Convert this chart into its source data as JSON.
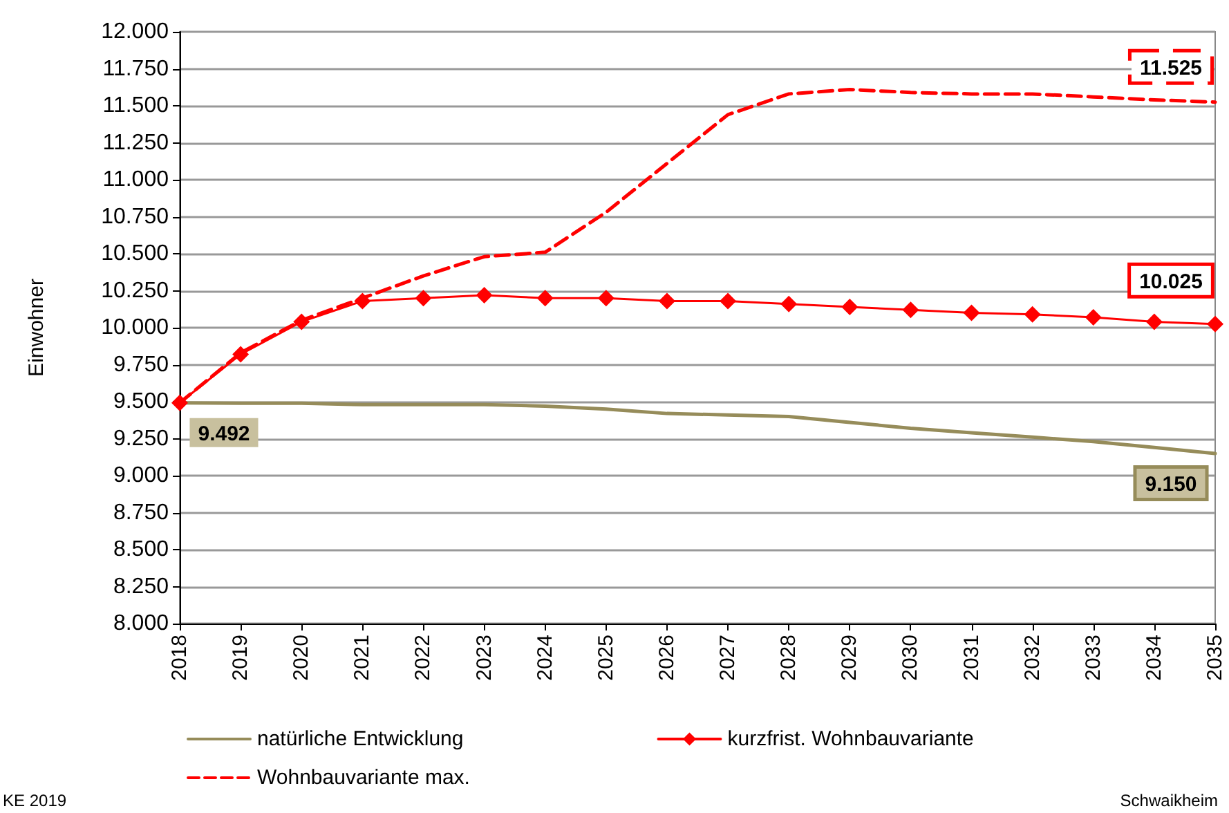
{
  "chart_data": {
    "type": "line",
    "ylabel": "Einwohner",
    "categories": [
      "2018",
      "2019",
      "2020",
      "2021",
      "2022",
      "2023",
      "2024",
      "2025",
      "2026",
      "2027",
      "2028",
      "2029",
      "2030",
      "2031",
      "2032",
      "2033",
      "2034",
      "2035"
    ],
    "ylim": [
      8000,
      12000
    ],
    "yticks": [
      {
        "value": 8000,
        "label": "8.000"
      },
      {
        "value": 8250,
        "label": "8.250"
      },
      {
        "value": 8500,
        "label": "8.500"
      },
      {
        "value": 8750,
        "label": "8.750"
      },
      {
        "value": 9000,
        "label": "9.000"
      },
      {
        "value": 9250,
        "label": "9.250"
      },
      {
        "value": 9500,
        "label": "9.500"
      },
      {
        "value": 9750,
        "label": "9.750"
      },
      {
        "value": 10000,
        "label": "10.000"
      },
      {
        "value": 10250,
        "label": "10.250"
      },
      {
        "value": 10500,
        "label": "10.500"
      },
      {
        "value": 10750,
        "label": "10.750"
      },
      {
        "value": 11000,
        "label": "11.000"
      },
      {
        "value": 11250,
        "label": "11.250"
      },
      {
        "value": 11500,
        "label": "11.500"
      },
      {
        "value": 11750,
        "label": "11.750"
      },
      {
        "value": 12000,
        "label": "12.000"
      }
    ],
    "grid": "y",
    "legend": "bottom",
    "series": [
      {
        "name": "natürliche Entwicklung",
        "color": "#968c5a",
        "marker": "none",
        "line_style": "solid",
        "values": [
          9492,
          9490,
          9490,
          9480,
          9480,
          9480,
          9470,
          9450,
          9420,
          9410,
          9400,
          9360,
          9320,
          9290,
          9260,
          9230,
          9190,
          9150
        ],
        "value_labels": [
          "9.492",
          null,
          null,
          null,
          null,
          null,
          null,
          null,
          null,
          null,
          null,
          null,
          null,
          null,
          null,
          null,
          null,
          "9.150"
        ]
      },
      {
        "name": "kurzfrist. Wohnbauvariante",
        "color": "#ff0000",
        "marker": "diamond",
        "line_style": "solid",
        "values": [
          9492,
          9820,
          10040,
          10180,
          10200,
          10220,
          10200,
          10200,
          10180,
          10180,
          10160,
          10140,
          10120,
          10100,
          10090,
          10070,
          10040,
          10025
        ],
        "value_labels": [
          null,
          null,
          null,
          null,
          null,
          null,
          null,
          null,
          null,
          null,
          null,
          null,
          null,
          null,
          null,
          null,
          null,
          "10.025"
        ]
      },
      {
        "name": "Wohnbauvariante max.",
        "color": "#ff0000",
        "marker": "none",
        "line_style": "dashed",
        "values": [
          9492,
          9830,
          10050,
          10200,
          10350,
          10480,
          10510,
          10780,
          11110,
          11440,
          11580,
          11610,
          11590,
          11580,
          11580,
          11560,
          11540,
          11525
        ],
        "value_labels": [
          null,
          null,
          null,
          null,
          null,
          null,
          null,
          null,
          null,
          null,
          null,
          null,
          null,
          null,
          null,
          null,
          null,
          "11.525"
        ]
      }
    ],
    "annotations": [
      "KE 2019",
      "Schwaikheim"
    ]
  }
}
